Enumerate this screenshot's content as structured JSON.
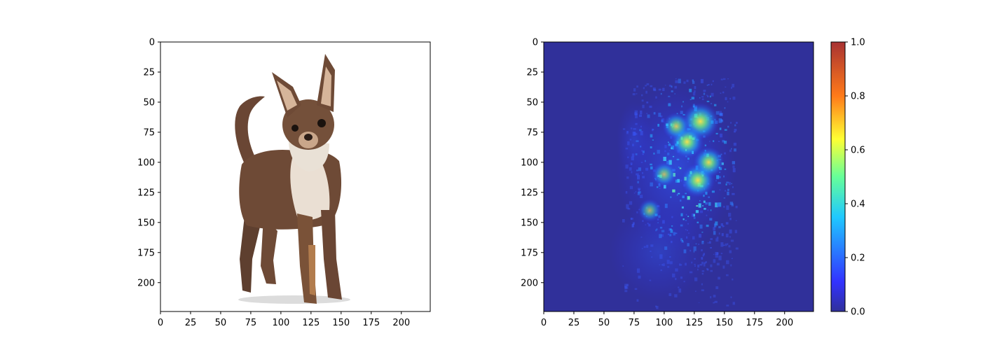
{
  "chart_data": [
    {
      "type": "image",
      "panel": "left",
      "subject": "chihuahua photograph on white background",
      "xlim": [
        0,
        224
      ],
      "ylim": [
        224,
        0
      ],
      "xticks": [
        0,
        25,
        50,
        75,
        100,
        125,
        150,
        175,
        200
      ],
      "yticks": [
        0,
        25,
        50,
        75,
        100,
        125,
        150,
        175,
        200
      ],
      "colors": {
        "background": "#ffffff",
        "fur": "#6e4a36",
        "fur_light": "#e9dfd2",
        "tan": "#b27c4d"
      }
    },
    {
      "type": "heatmap",
      "panel": "right",
      "colormap": "jet",
      "xlim": [
        0,
        224
      ],
      "ylim": [
        224,
        0
      ],
      "xticks": [
        0,
        25,
        50,
        75,
        100,
        125,
        150,
        175,
        200
      ],
      "yticks": [
        0,
        25,
        50,
        75,
        100,
        125,
        150,
        175,
        200
      ],
      "background_value": 0.0,
      "hotspots": [
        {
          "x": 130,
          "y": 66,
          "value": 0.75
        },
        {
          "x": 119,
          "y": 83,
          "value": 0.62
        },
        {
          "x": 128,
          "y": 115,
          "value": 0.65
        },
        {
          "x": 137,
          "y": 100,
          "value": 0.55
        },
        {
          "x": 110,
          "y": 70,
          "value": 0.45
        },
        {
          "x": 100,
          "y": 110,
          "value": 0.35
        },
        {
          "x": 88,
          "y": 140,
          "value": 0.3
        }
      ],
      "colorbar": {
        "range": [
          0.0,
          1.0
        ],
        "ticks": [
          0.0,
          0.2,
          0.4,
          0.6,
          0.8,
          1.0
        ],
        "tick_labels": [
          "0.0",
          "0.2",
          "0.4",
          "0.6",
          "0.8",
          "1.0"
        ]
      }
    }
  ]
}
